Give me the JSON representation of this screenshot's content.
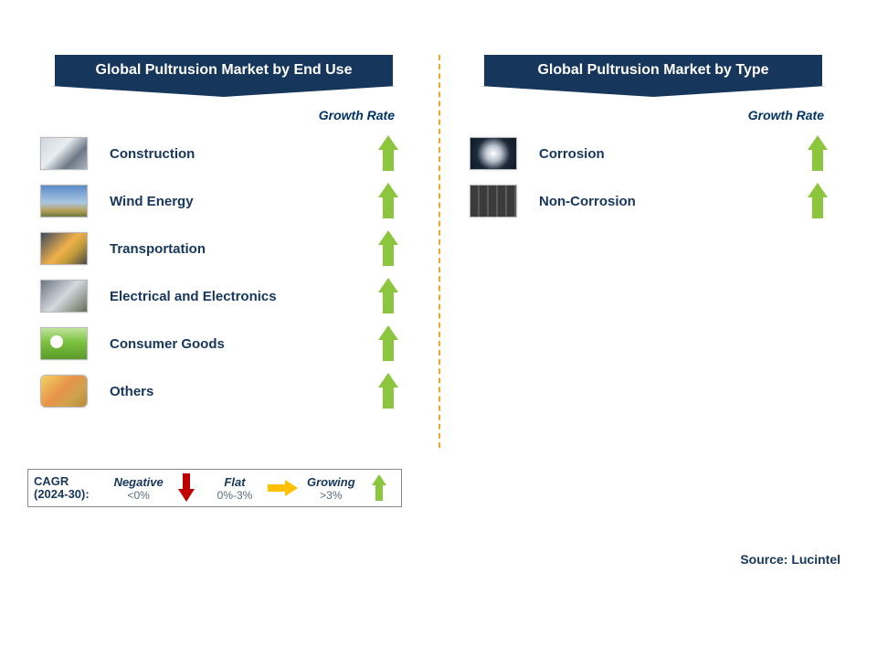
{
  "colors": {
    "header_bg": "#16365c",
    "text_navy": "#16365c",
    "arrow_green": "#8cc63f",
    "arrow_red": "#c00000",
    "arrow_yellow": "#ffc000",
    "divider": "#f5a623"
  },
  "left": {
    "title": "Global Pultrusion Market by End Use",
    "growth_label": "Growth Rate",
    "items": [
      {
        "label": "Construction",
        "thumb": "th-construction",
        "arrow": "green"
      },
      {
        "label": "Wind Energy",
        "thumb": "th-wind",
        "arrow": "green"
      },
      {
        "label": "Transportation",
        "thumb": "th-transport",
        "arrow": "green"
      },
      {
        "label": "Electrical and Electronics",
        "thumb": "th-electrical",
        "arrow": "green"
      },
      {
        "label": "Consumer Goods",
        "thumb": "th-consumer",
        "arrow": "green"
      },
      {
        "label": "Others",
        "thumb": "th-others",
        "arrow": "green"
      }
    ]
  },
  "right": {
    "title": "Global Pultrusion Market by Type",
    "growth_label": "Growth Rate",
    "items": [
      {
        "label": "Corrosion",
        "thumb": "th-corrosion",
        "arrow": "green"
      },
      {
        "label": "Non-Corrosion",
        "thumb": "th-noncorrosion",
        "arrow": "green"
      }
    ]
  },
  "legend": {
    "cagr_line1": "CAGR",
    "cagr_line2": "(2024-30):",
    "negative_term": "Negative",
    "negative_range": "<0%",
    "flat_term": "Flat",
    "flat_range": "0%-3%",
    "growing_term": "Growing",
    "growing_range": ">3%"
  },
  "source": "Source: Lucintel"
}
